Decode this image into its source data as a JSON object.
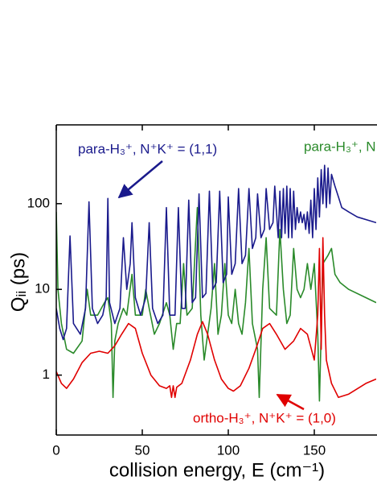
{
  "chart_data": {
    "type": "line",
    "xlabel": "collision energy, E (cm⁻¹)",
    "ylabel": "Qᵢᵢ (ps)",
    "xlim": [
      0,
      186
    ],
    "ylim": [
      0.2,
      830
    ],
    "yscale": "log",
    "xticks": [
      0,
      50,
      100,
      150
    ],
    "yticks": [
      1,
      10,
      100
    ],
    "annotations": [
      {
        "text": "para-H₃⁺, N⁺K⁺ = (1,1)",
        "color": "#1a1a8c"
      },
      {
        "text": "para-H₃⁺, N",
        "color": "#2a8a2a"
      },
      {
        "text": "ortho-H₃⁺, N⁺K⁺ = (1,0)",
        "color": "#e00000"
      }
    ],
    "series": [
      {
        "color": "#2a8a2a",
        "x": [
          0,
          1,
          3,
          6,
          10,
          15,
          18,
          20,
          24,
          28,
          30,
          32,
          33,
          34,
          36,
          39,
          41,
          44,
          46,
          50,
          52,
          54,
          57,
          60,
          64,
          66,
          68,
          70,
          72,
          74,
          76,
          79,
          82,
          84,
          86,
          88,
          90,
          92,
          94,
          96,
          98,
          100,
          102,
          104,
          106,
          108,
          110,
          112,
          114,
          117,
          118,
          120,
          122,
          124,
          128,
          130,
          132,
          134,
          136,
          138,
          140,
          142,
          144,
          146,
          148,
          150,
          152,
          153,
          155,
          158,
          160,
          162,
          165,
          170,
          180,
          186
        ],
        "values": [
          80,
          10,
          4,
          2,
          1.8,
          2.5,
          10,
          5,
          5,
          7,
          8,
          4,
          0.55,
          2.5,
          4,
          6,
          5,
          15,
          5,
          5,
          10,
          6,
          3,
          4,
          7,
          5,
          2,
          4,
          4,
          20,
          5,
          6,
          90,
          5,
          1.5,
          3,
          6,
          20,
          3,
          5,
          20,
          5,
          4,
          10,
          4,
          3,
          7,
          30,
          4,
          2,
          0.55,
          10,
          40,
          6,
          5,
          50,
          10,
          4,
          5,
          30,
          10,
          8,
          10,
          20,
          10,
          20,
          3,
          0.5,
          20,
          25,
          30,
          15,
          12,
          10,
          8,
          7
        ]
      },
      {
        "color": "#e00000",
        "x": [
          0,
          3,
          6,
          10,
          15,
          20,
          25,
          30,
          34,
          38,
          42,
          46,
          50,
          55,
          60,
          64,
          66,
          67,
          68,
          69,
          70,
          73,
          78,
          82,
          85,
          88,
          92,
          96,
          100,
          103,
          107,
          112,
          116,
          120,
          124,
          128,
          133,
          138,
          142,
          146,
          150,
          152,
          153,
          154,
          155,
          156,
          157,
          160,
          164,
          170,
          180,
          186
        ],
        "values": [
          1.1,
          0.8,
          0.7,
          0.9,
          1.4,
          1.8,
          1.9,
          1.8,
          2.2,
          3,
          4,
          3.5,
          1.8,
          1,
          0.75,
          0.7,
          0.75,
          0.55,
          0.75,
          0.55,
          0.72,
          0.8,
          1.5,
          3,
          4.2,
          3,
          1.5,
          0.9,
          0.7,
          0.65,
          0.75,
          1.2,
          2,
          3.5,
          4,
          3,
          2,
          2.5,
          3.5,
          3,
          1.5,
          5,
          30,
          2,
          40,
          5,
          1.5,
          0.8,
          0.55,
          0.6,
          0.8,
          0.9
        ]
      },
      {
        "color": "#1a1a8c",
        "x": [
          0,
          2,
          4,
          6,
          8,
          10,
          14,
          17,
          19,
          21,
          24,
          27,
          29,
          30,
          31,
          34,
          37,
          39,
          41,
          43,
          44,
          46,
          49,
          52,
          54,
          56,
          59,
          62,
          64,
          66,
          69,
          71,
          73,
          75,
          77,
          79,
          81,
          83,
          85,
          87,
          89,
          91,
          93,
          95,
          97,
          99,
          100,
          102,
          104,
          106,
          108,
          110,
          112,
          114,
          116,
          117,
          119,
          121,
          122,
          124,
          126,
          127,
          129,
          130,
          131,
          132,
          133,
          134,
          135,
          136,
          137,
          138,
          139,
          140,
          141,
          142,
          143,
          144,
          145,
          146,
          147,
          148,
          149,
          150,
          151,
          152,
          153,
          154,
          155,
          156,
          157,
          158,
          159,
          160,
          162,
          164,
          166,
          170,
          175,
          186
        ],
        "values": [
          6,
          3.5,
          2.6,
          3.5,
          42,
          4,
          3,
          6,
          105,
          6,
          4,
          5,
          8,
          115,
          7,
          4,
          6,
          40,
          10,
          20,
          60,
          8,
          5,
          8,
          60,
          6,
          4,
          5,
          90,
          5,
          5,
          90,
          6,
          6,
          110,
          7,
          8,
          130,
          8,
          9,
          140,
          10,
          12,
          140,
          12,
          15,
          120,
          15,
          20,
          150,
          20,
          25,
          150,
          30,
          40,
          130,
          40,
          50,
          150,
          50,
          60,
          160,
          40,
          140,
          40,
          150,
          45,
          160,
          40,
          150,
          40,
          140,
          50,
          90,
          60,
          80,
          60,
          75,
          50,
          80,
          45,
          110,
          40,
          150,
          50,
          200,
          70,
          250,
          100,
          280,
          90,
          260,
          100,
          220,
          160,
          120,
          90,
          80,
          70,
          60
        ]
      }
    ]
  }
}
